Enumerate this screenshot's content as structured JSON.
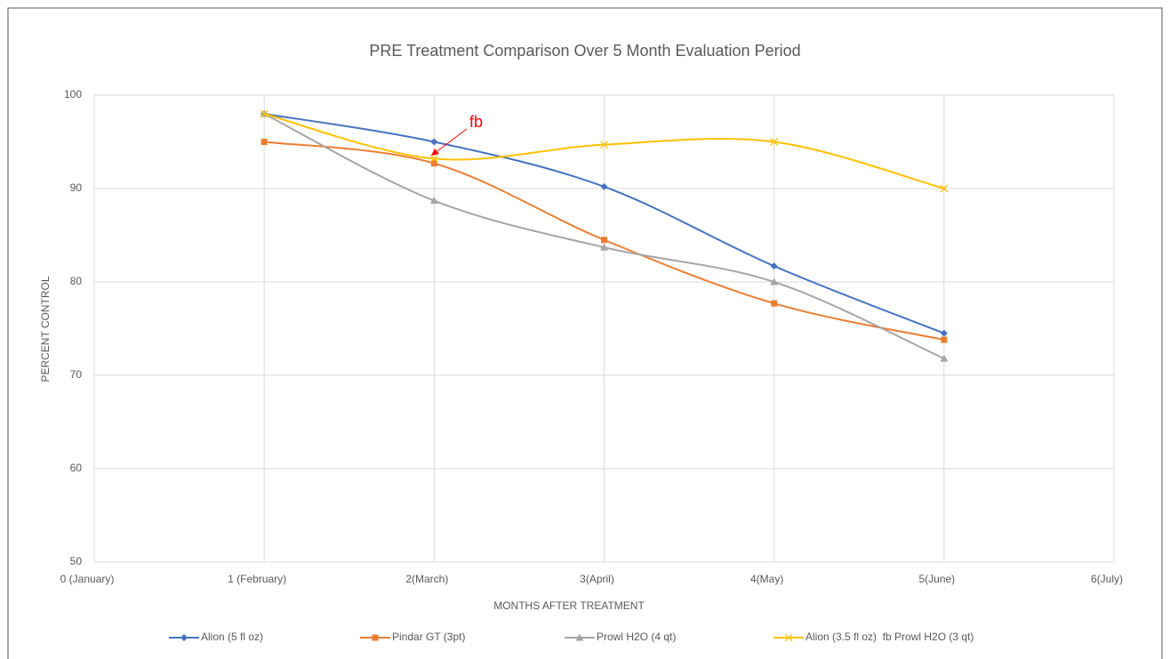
{
  "chart_data": {
    "type": "line",
    "title": "PRE Treatment Comparison Over 5 Month Evaluation Period",
    "x_label": "MONTHS AFTER TREATMENT",
    "y_label": "PERCENT CONTROL",
    "x": [
      1,
      2,
      3,
      4,
      5
    ],
    "xlim": [
      0,
      6
    ],
    "xticks": [
      {
        "value": 0,
        "label": "0 (January)"
      },
      {
        "value": 1,
        "label": "1 (February)"
      },
      {
        "value": 2,
        "label": "2(March)"
      },
      {
        "value": 3,
        "label": "3(April)"
      },
      {
        "value": 4,
        "label": "4(May)"
      },
      {
        "value": 5,
        "label": "5(June)"
      },
      {
        "value": 6,
        "label": "6(July)"
      }
    ],
    "ylim": [
      50,
      100
    ],
    "yticks": [
      50,
      60,
      70,
      80,
      90,
      100
    ],
    "grid": true,
    "smooth": true,
    "legend": "bottom",
    "annotation": "fb",
    "series": [
      {
        "name": "Alion (5 fl oz)",
        "color": "#4472c4",
        "marker": "diamond",
        "values": [
          98,
          95,
          90.2,
          81.7,
          74.5
        ]
      },
      {
        "name": "Pindar GT (3pt)",
        "color": "#ed7d31",
        "marker": "square",
        "values": [
          95,
          92.7,
          84.5,
          77.7,
          73.8
        ]
      },
      {
        "name": "Prowl H2O (4 qt)",
        "color": "#a5a5a5",
        "marker": "triangle",
        "values": [
          98,
          88.7,
          83.7,
          80,
          71.8
        ]
      },
      {
        "name": "Alion (3.5 fl oz)  fb Prowl H2O (3 qt)",
        "color": "#ffc000",
        "marker": "x",
        "values": [
          98,
          93.2,
          94.7,
          95,
          90
        ]
      }
    ]
  }
}
